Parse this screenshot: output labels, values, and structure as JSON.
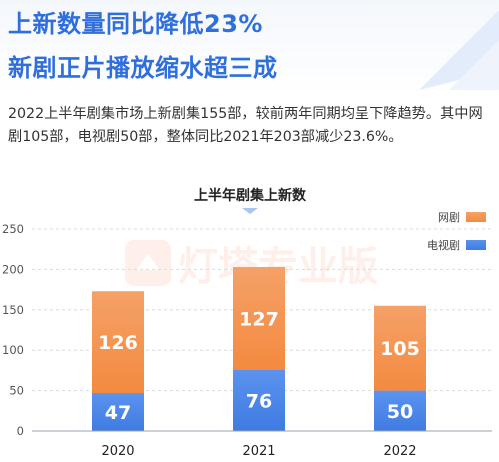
{
  "header": {
    "line1": "上新数量同比降低23%",
    "line2": "新剧正片播放缩水超三成"
  },
  "description": "2022上半年剧集市场上新剧集155部，较前两年同期均呈下降趋势。其中网剧105部，电视剧50部，整体同比2021年203部减少23.6%。",
  "watermark": "灯塔专业版",
  "colors": {
    "accent": "#2f6fdd",
    "web_series": "#f4914a",
    "tv_series": "#4a86e8"
  },
  "chart_data": {
    "type": "bar",
    "stacked": true,
    "title": "上半年剧集上新数",
    "categories": [
      "2020",
      "2021",
      "2022"
    ],
    "series": [
      {
        "name": "电视剧",
        "values": [
          47,
          76,
          50
        ],
        "color": "#4a86e8"
      },
      {
        "name": "网剧",
        "values": [
          126,
          127,
          105
        ],
        "color": "#f4914a"
      }
    ],
    "ylim": [
      0,
      250
    ],
    "yticks": [
      0,
      50,
      100,
      150,
      200,
      250
    ],
    "grid": true,
    "legend": "top-right"
  }
}
